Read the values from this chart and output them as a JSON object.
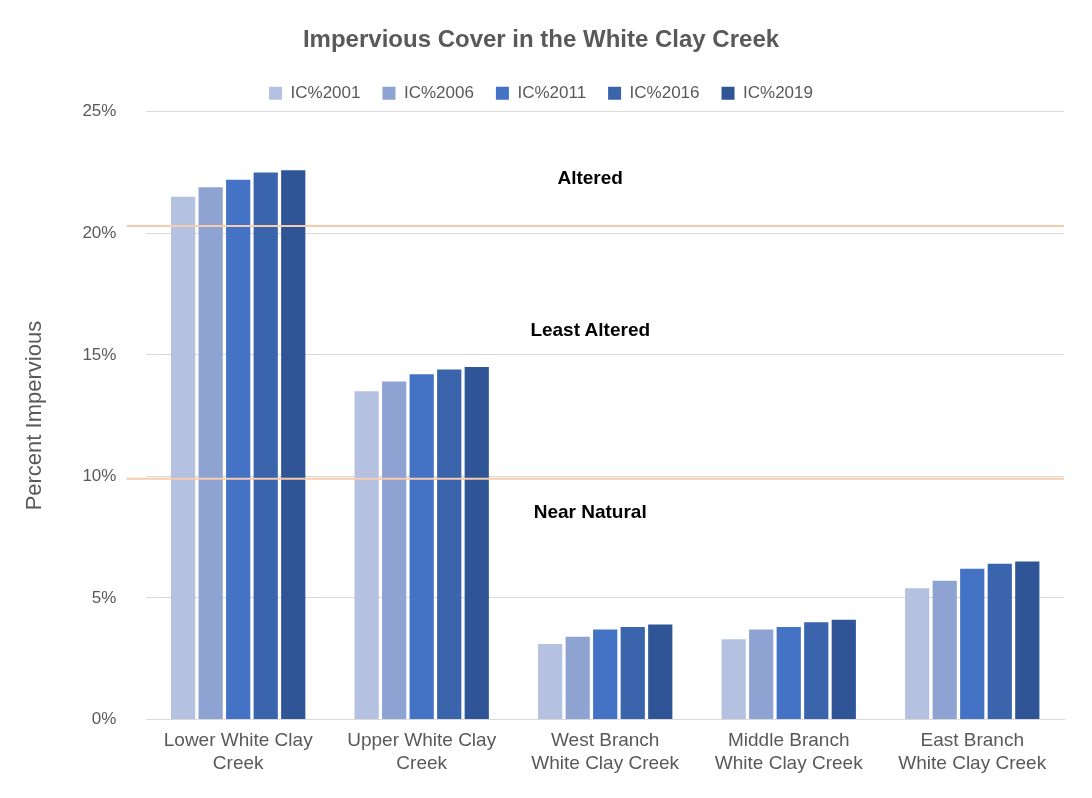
{
  "chart_data": {
    "type": "bar",
    "title": "Impervious Cover in the White Clay Creek",
    "ylabel": "Percent Impervious",
    "categories": [
      "Lower White Clay Creek",
      "Upper White Clay Creek",
      "West Branch White Clay Creek",
      "Middle Branch White Clay Creek",
      "East Branch White Clay Creek"
    ],
    "series": [
      {
        "name": "IC%2001",
        "color": "#b4c1e0",
        "values": [
          21.5,
          13.5,
          3.1,
          3.3,
          5.4
        ]
      },
      {
        "name": "IC%2006",
        "color": "#8fa3d3",
        "values": [
          21.9,
          13.9,
          3.4,
          3.7,
          5.7
        ]
      },
      {
        "name": "IC%2011",
        "color": "#4472c4",
        "values": [
          22.2,
          14.2,
          3.7,
          3.8,
          6.2
        ]
      },
      {
        "name": "IC%2016",
        "color": "#3a64ab",
        "values": [
          22.5,
          14.4,
          3.8,
          4.0,
          6.4
        ]
      },
      {
        "name": "IC%2019",
        "color": "#2f5597",
        "values": [
          22.6,
          14.5,
          3.9,
          4.1,
          6.5
        ]
      }
    ],
    "ylim": [
      0,
      25
    ],
    "yticks": [
      {
        "value": 0,
        "label": "0%"
      },
      {
        "value": 5,
        "label": "5%"
      },
      {
        "value": 10,
        "label": "10%"
      },
      {
        "value": 15,
        "label": "15%"
      },
      {
        "value": 20,
        "label": "20%"
      },
      {
        "value": 25,
        "label": "25%"
      }
    ],
    "ref_lines": [
      {
        "axis": "y",
        "value": 20.3,
        "color": "#f8cbad"
      },
      {
        "axis": "y",
        "value": 9.9,
        "color": "#f8cbad"
      }
    ],
    "annotations": [
      "Altered",
      "Least Altered",
      "Near Natural"
    ],
    "grid": "y",
    "legend": "top"
  }
}
